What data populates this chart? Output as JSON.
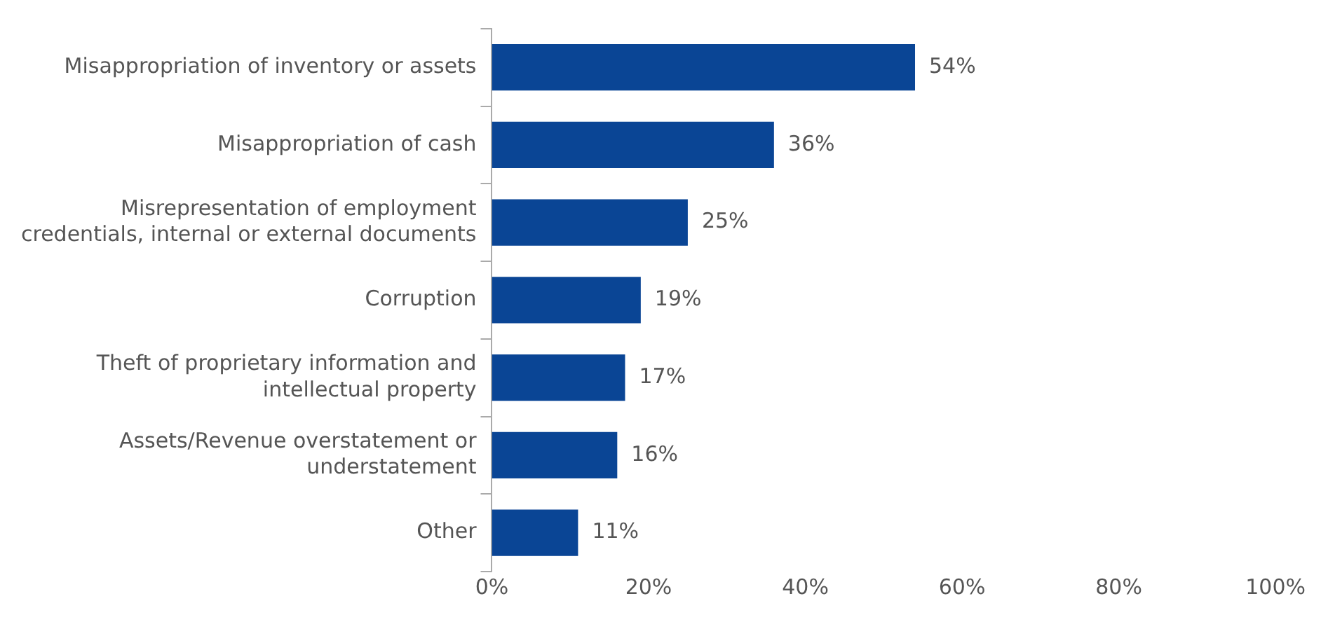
{
  "chart_data": {
    "type": "bar",
    "orientation": "horizontal",
    "categories": [
      "Misappropriation of inventory or assets",
      "Misappropriation of cash",
      "Misrepresentation of employment credentials, internal or external documents",
      "Corruption",
      "Theft of proprietary information and intellectual property",
      "Assets/Revenue overstatement or understatement",
      "Other"
    ],
    "values": [
      54,
      36,
      25,
      19,
      17,
      16,
      11
    ],
    "value_labels": [
      "54%",
      "36%",
      "25%",
      "19%",
      "17%",
      "16%",
      "11%"
    ],
    "color": "#0a4595",
    "xlim": [
      0,
      100
    ],
    "xticks": [
      {
        "value": 0,
        "label": "0%"
      },
      {
        "value": 20,
        "label": "20%"
      },
      {
        "value": 40,
        "label": "40%"
      },
      {
        "value": 60,
        "label": "60%"
      },
      {
        "value": 80,
        "label": "80%"
      },
      {
        "value": 100,
        "label": "100%"
      }
    ],
    "grid": false,
    "legend": false
  }
}
